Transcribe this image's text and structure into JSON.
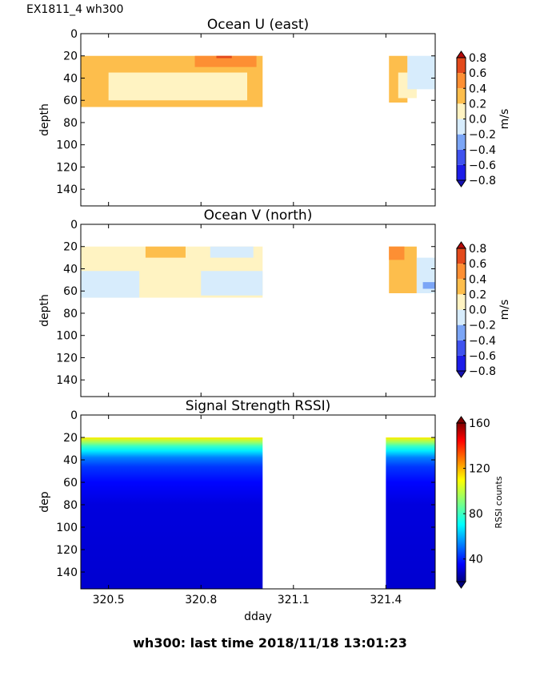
{
  "header": {
    "run_label": "EX1811_4 wh300"
  },
  "footer": {
    "last_time": "wh300: last time 2018/11/18 13:01:23"
  },
  "colors": {
    "u_neg_light": "#d7ecfc",
    "u_neg_mid": "#a9cdf5",
    "u_neg_strong": "#5a85f0",
    "u_pos_light": "#fff3c2",
    "u_pos_mid": "#fdbe4c",
    "u_pos_strong": "#fd8f33",
    "u_pos_max": "#e34a1c"
  },
  "chart_data": [
    {
      "type": "heatmap",
      "title": "Ocean U (east)",
      "xlabel": "",
      "ylabel": "depth",
      "ylim": [
        155,
        0
      ],
      "xlim": [
        320.41,
        321.56
      ],
      "yticks": [
        0,
        20,
        40,
        60,
        80,
        100,
        120,
        140
      ],
      "xticks": [
        320.5,
        320.8,
        321.1,
        321.4
      ],
      "show_xticklabels": false,
      "colorbar": {
        "label": "m/s",
        "range": [
          -0.8,
          0.8
        ],
        "ticks": [
          "0.8",
          "0.6",
          "0.4",
          "0.2",
          "0.0",
          "−0.2",
          "−0.4",
          "−0.6",
          "−0.8"
        ],
        "colors": [
          "#1c1ce8",
          "#3f52ef",
          "#7ba5f6",
          "#d7ecfc",
          "#fff3c2",
          "#fdbe4c",
          "#fd8f33",
          "#e34a1c"
        ]
      },
      "data_segments": [
        {
          "x": [
            320.41,
            321.0
          ],
          "depth": [
            20,
            66
          ]
        },
        {
          "x": [
            321.41,
            321.56
          ],
          "depth": [
            20,
            62
          ]
        }
      ],
      "regions": [
        {
          "x": [
            320.41,
            321.0
          ],
          "depth": [
            20,
            66
          ],
          "value": 0.25
        },
        {
          "x": [
            320.5,
            320.95
          ],
          "depth": [
            35,
            60
          ],
          "value": 0.05
        },
        {
          "x": [
            320.78,
            320.98
          ],
          "depth": [
            20,
            30
          ],
          "value": 0.45
        },
        {
          "x": [
            320.85,
            320.9
          ],
          "depth": [
            20,
            22
          ],
          "value": 0.7
        },
        {
          "x": [
            321.41,
            321.47
          ],
          "depth": [
            20,
            62
          ],
          "value": 0.2
        },
        {
          "x": [
            321.44,
            321.5
          ],
          "depth": [
            35,
            58
          ],
          "value": 0.05
        },
        {
          "x": [
            321.47,
            321.56
          ],
          "depth": [
            20,
            50
          ],
          "value": -0.05
        }
      ]
    },
    {
      "type": "heatmap",
      "title": "Ocean V (north)",
      "xlabel": "",
      "ylabel": "depth",
      "ylim": [
        155,
        0
      ],
      "xlim": [
        320.41,
        321.56
      ],
      "yticks": [
        0,
        20,
        40,
        60,
        80,
        100,
        120,
        140
      ],
      "xticks": [
        320.5,
        320.8,
        321.1,
        321.4
      ],
      "show_xticklabels": false,
      "colorbar": {
        "label": "m/s",
        "range": [
          -0.8,
          0.8
        ],
        "ticks": [
          "0.8",
          "0.6",
          "0.4",
          "0.2",
          "0.0",
          "−0.2",
          "−0.4",
          "−0.6",
          "−0.8"
        ],
        "colors": [
          "#1c1ce8",
          "#3f52ef",
          "#7ba5f6",
          "#d7ecfc",
          "#fff3c2",
          "#fdbe4c",
          "#fd8f33",
          "#e34a1c"
        ]
      },
      "data_segments": [
        {
          "x": [
            320.41,
            321.0
          ],
          "depth": [
            20,
            66
          ]
        },
        {
          "x": [
            321.41,
            321.56
          ],
          "depth": [
            20,
            62
          ]
        }
      ],
      "regions": [
        {
          "x": [
            320.41,
            321.0
          ],
          "depth": [
            20,
            66
          ],
          "value": 0.05
        },
        {
          "x": [
            320.41,
            320.6
          ],
          "depth": [
            42,
            66
          ],
          "value": -0.05
        },
        {
          "x": [
            320.8,
            321.0
          ],
          "depth": [
            42,
            64
          ],
          "value": -0.05
        },
        {
          "x": [
            320.62,
            320.75
          ],
          "depth": [
            20,
            30
          ],
          "value": 0.25
        },
        {
          "x": [
            320.83,
            320.97
          ],
          "depth": [
            20,
            30
          ],
          "value": -0.05
        },
        {
          "x": [
            321.41,
            321.5
          ],
          "depth": [
            20,
            62
          ],
          "value": 0.3
        },
        {
          "x": [
            321.41,
            321.46
          ],
          "depth": [
            20,
            32
          ],
          "value": 0.55
        },
        {
          "x": [
            321.5,
            321.56
          ],
          "depth": [
            30,
            62
          ],
          "value": -0.2
        },
        {
          "x": [
            321.52,
            321.56
          ],
          "depth": [
            52,
            58
          ],
          "value": -0.4
        }
      ]
    },
    {
      "type": "heatmap",
      "title": "Signal Strength RSSI)",
      "xlabel": "dday",
      "ylabel": "dep",
      "ylim": [
        155,
        0
      ],
      "xlim": [
        320.41,
        321.56
      ],
      "yticks": [
        0,
        20,
        40,
        60,
        80,
        100,
        120,
        140
      ],
      "xticks": [
        320.5,
        320.8,
        321.1,
        321.4
      ],
      "xticklabels": [
        "320.5",
        "320.8",
        "321.1",
        "321.4"
      ],
      "show_xticklabels": true,
      "colorbar": {
        "label": "RSSI counts",
        "range": [
          20,
          160
        ],
        "ticks": [
          "160",
          "120",
          "80",
          "40"
        ],
        "tick_values": [
          160,
          120,
          80,
          40
        ],
        "colormap": "jet"
      },
      "data_segments": [
        {
          "x": [
            320.41,
            321.0
          ],
          "depth": [
            20,
            155
          ]
        },
        {
          "x": [
            321.4,
            321.56
          ],
          "depth": [
            20,
            155
          ]
        }
      ],
      "depth_profile": [
        {
          "depth": 20,
          "value": 110
        },
        {
          "depth": 24,
          "value": 95
        },
        {
          "depth": 28,
          "value": 80
        },
        {
          "depth": 32,
          "value": 70
        },
        {
          "depth": 38,
          "value": 55
        },
        {
          "depth": 46,
          "value": 45
        },
        {
          "depth": 60,
          "value": 38
        },
        {
          "depth": 80,
          "value": 33
        },
        {
          "depth": 155,
          "value": 31
        }
      ]
    }
  ]
}
